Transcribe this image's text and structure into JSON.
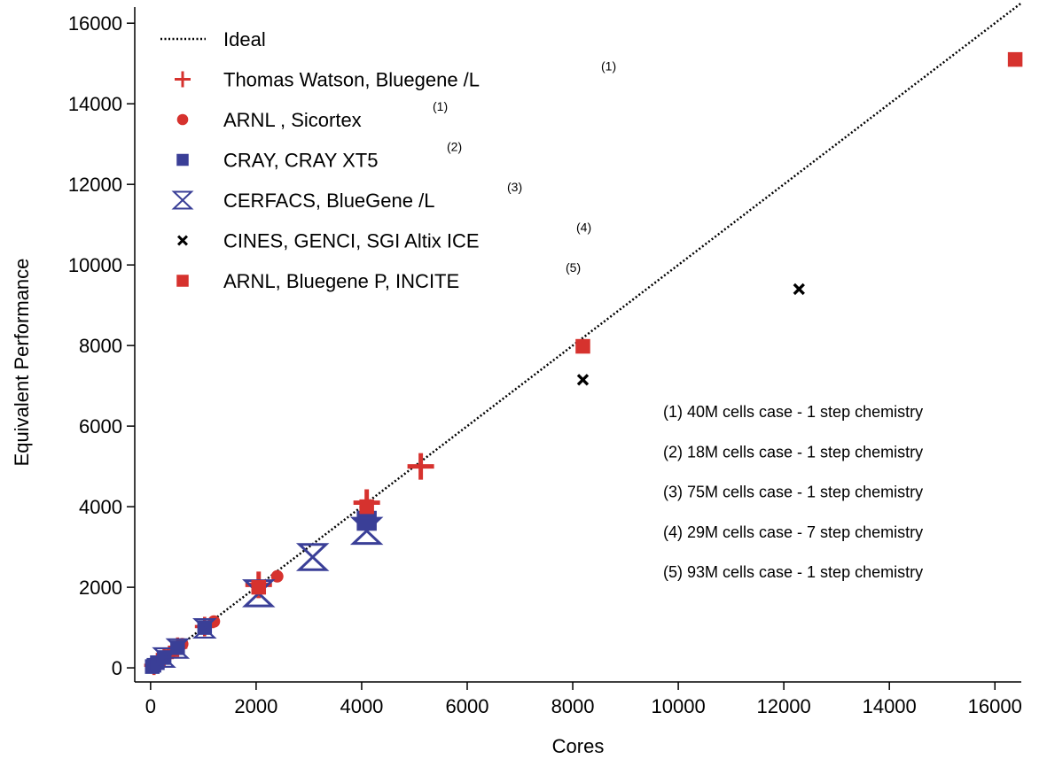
{
  "colors": {
    "red": "#d6322e",
    "blue": "#3a3f97",
    "black": "#000000"
  },
  "chart_data": {
    "type": "scatter",
    "title": "",
    "xlabel": "Cores",
    "ylabel": "Equivalent Performance",
    "xlim": [
      -300,
      16500
    ],
    "ylim": [
      -350,
      16400
    ],
    "xticks": [
      "0",
      "2000",
      "4000",
      "6000",
      "8000",
      "10000",
      "12000",
      "14000",
      "16000"
    ],
    "yticks": [
      "0",
      "2000",
      "4000",
      "6000",
      "8000",
      "10000",
      "12000",
      "14000",
      "16000"
    ],
    "grid": false,
    "legend_position": "top-left",
    "series": [
      {
        "name": "Ideal",
        "marker": "dotted-line",
        "color": "#000000",
        "sup": "",
        "points": [
          [
            0,
            0
          ],
          [
            16500,
            16500
          ]
        ]
      },
      {
        "name": "Thomas Watson, Bluegene /L",
        "marker": "plus",
        "color": "#d6322e",
        "sup": "(1)",
        "points": [
          [
            64,
            64
          ],
          [
            128,
            128
          ],
          [
            256,
            256
          ],
          [
            512,
            512
          ],
          [
            1024,
            1024
          ],
          [
            2048,
            2060
          ],
          [
            4096,
            4100
          ],
          [
            5120,
            5000
          ]
        ]
      },
      {
        "name": "ARNL , Sicortex",
        "marker": "circle",
        "color": "#d6322e",
        "sup": "(1)",
        "points": [
          [
            90,
            90
          ],
          [
            200,
            200
          ],
          [
            300,
            300
          ],
          [
            400,
            390
          ],
          [
            600,
            590
          ],
          [
            1200,
            1150
          ],
          [
            2400,
            2270
          ]
        ]
      },
      {
        "name": "CRAY, CRAY XT5",
        "marker": "square",
        "color": "#3a3f97",
        "sup": "(2)",
        "points": [
          [
            32,
            32
          ],
          [
            64,
            64
          ],
          [
            128,
            128
          ],
          [
            256,
            256
          ],
          [
            512,
            500
          ],
          [
            1024,
            1000
          ],
          [
            4096,
            3650
          ]
        ]
      },
      {
        "name": "CERFACS, BlueGene /L",
        "marker": "hourglass",
        "color": "#3a3f97",
        "sup": "(3)",
        "points": [
          [
            256,
            256
          ],
          [
            512,
            480
          ],
          [
            1024,
            980
          ],
          [
            2048,
            1850
          ],
          [
            3072,
            2750
          ],
          [
            4096,
            3400
          ]
        ]
      },
      {
        "name": "CINES, GENCI,  SGI Altix ICE",
        "marker": "x",
        "color": "#000000",
        "sup": "(4)",
        "points": [
          [
            8192,
            7150
          ],
          [
            12288,
            9400
          ]
        ]
      },
      {
        "name": "ARNL, Bluegene P, INCITE",
        "marker": "filled-square",
        "color": "#d6322e",
        "sup": "(5)",
        "points": [
          [
            2048,
            2000
          ],
          [
            4096,
            4000
          ],
          [
            8192,
            7980
          ],
          [
            16384,
            15100
          ]
        ]
      }
    ],
    "annotations": [
      "(1)  40M cells case  - 1 step chemistry",
      "(2)  18M cells case  - 1 step chemistry",
      "(3)  75M cells case  - 1 step chemistry",
      "(4)  29M cells case  - 7 step chemistry",
      "(5)  93M cells case  - 1 step chemistry"
    ]
  }
}
